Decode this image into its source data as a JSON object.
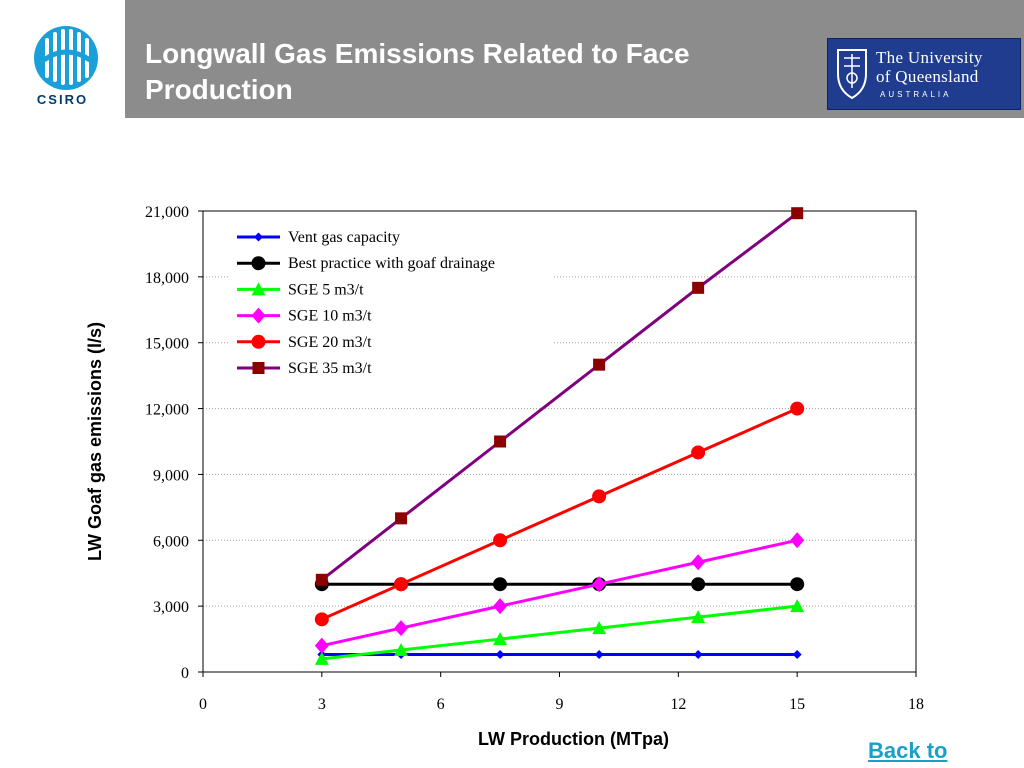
{
  "header": {
    "title": "Longwall Gas Emissions Related to Face Production",
    "csiro_wordmark": "CSIRO",
    "uq_line1": "The University",
    "uq_line2": "of Queensland",
    "uq_line3": "AUSTRALIA"
  },
  "footer": {
    "link_text": "Back to"
  },
  "chart_data": {
    "type": "line",
    "xlabel": "LW Production (MTpa)",
    "ylabel": "LW Goaf gas emissions (l/s)",
    "xlim": [
      0,
      18
    ],
    "ylim": [
      0,
      21000
    ],
    "x_ticks": [
      0,
      3,
      6,
      9,
      12,
      15,
      18
    ],
    "y_ticks": [
      0,
      3000,
      6000,
      9000,
      12000,
      15000,
      18000,
      21000
    ],
    "x_tick_labels": [
      "0",
      "3",
      "6",
      "9",
      "12",
      "15",
      "18"
    ],
    "y_tick_labels": [
      "0",
      "3,000",
      "6,000",
      "9,000",
      "12,000",
      "15,000",
      "18,000",
      "21,000"
    ],
    "grid": "horizontal dotted",
    "legend_position": "top-left",
    "series": [
      {
        "name": "Vent gas capacity",
        "color": "#0000ff",
        "marker": "diamond-small",
        "x": [
          3,
          5,
          7.5,
          10,
          12.5,
          15
        ],
        "y": [
          800,
          800,
          800,
          800,
          800,
          800
        ]
      },
      {
        "name": "Best practice with goaf drainage",
        "color": "#000000",
        "marker": "circle",
        "x": [
          3,
          5,
          7.5,
          10,
          12.5,
          15
        ],
        "y": [
          4000,
          4000,
          4000,
          4000,
          4000,
          4000
        ]
      },
      {
        "name": "SGE 5 m3/t",
        "color": "#00ff00",
        "marker": "triangle",
        "x": [
          3,
          5,
          7.5,
          10,
          12.5,
          15
        ],
        "y": [
          600,
          1000,
          1500,
          2000,
          2500,
          3000
        ]
      },
      {
        "name": "SGE 10 m3/t",
        "color": "#ff00ff",
        "marker": "diamond",
        "x": [
          3,
          5,
          7.5,
          10,
          12.5,
          15
        ],
        "y": [
          1200,
          2000,
          3000,
          4000,
          5000,
          6000
        ]
      },
      {
        "name": "SGE 20 m3/t",
        "color": "#ff0000",
        "marker": "circle",
        "x": [
          3,
          5,
          7.5,
          10,
          12.5,
          15
        ],
        "y": [
          2400,
          4000,
          6000,
          8000,
          10000,
          12000
        ]
      },
      {
        "name": "SGE 35 m3/t",
        "color": "#800080",
        "marker": "square",
        "marker_color": "#8b0000",
        "x": [
          3,
          5,
          7.5,
          10,
          12.5,
          15
        ],
        "y": [
          4200,
          7000,
          10500,
          14000,
          17500,
          20900
        ]
      }
    ]
  }
}
